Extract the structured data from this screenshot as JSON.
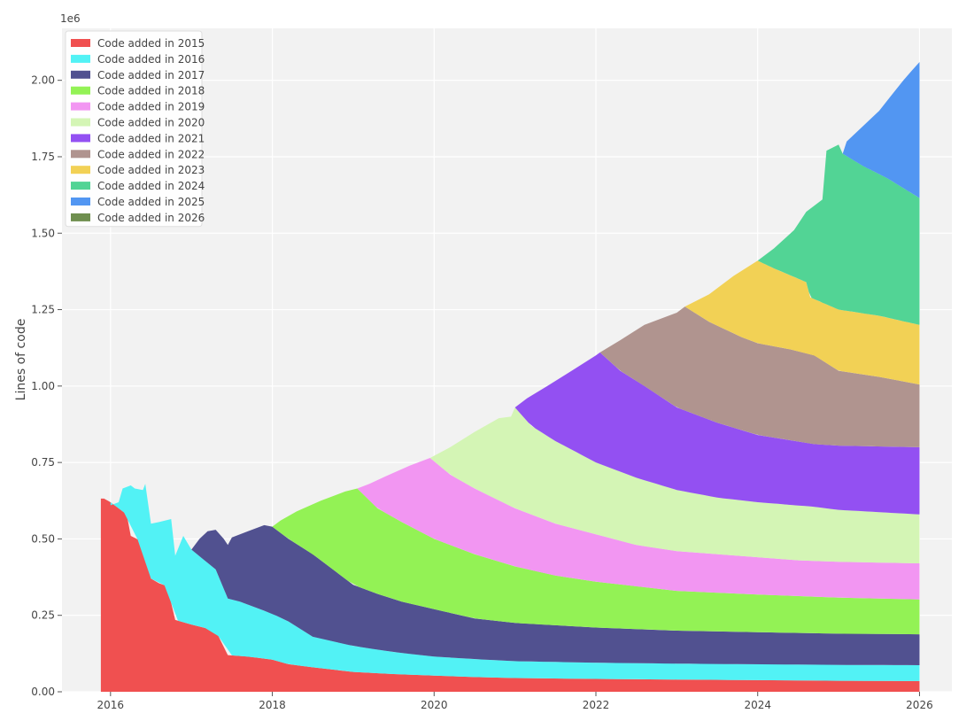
{
  "chart_data": {
    "type": "area",
    "stacked": true,
    "title": "",
    "xlabel": "",
    "ylabel": "Lines of code",
    "y_multiplier_label": "1e6",
    "xlim": [
      2015.4,
      2026.4
    ],
    "ylim": [
      0,
      2.17
    ],
    "x_ticks": [
      2016,
      2018,
      2020,
      2022,
      2024,
      2026
    ],
    "x_tick_labels": [
      "2016",
      "2018",
      "2020",
      "2022",
      "2024",
      "2026"
    ],
    "y_ticks": [
      0,
      0.25,
      0.5,
      0.75,
      1.0,
      1.25,
      1.5,
      1.75,
      2.0
    ],
    "y_tick_labels": [
      "0.00",
      "0.25",
      "0.50",
      "0.75",
      "1.00",
      "1.25",
      "1.50",
      "1.75",
      "2.00"
    ],
    "grid": true,
    "legend_position": "top-left",
    "series": [
      {
        "name": "Code added in 2015",
        "color": "#f05050",
        "points": [
          [
            2015.88,
            0
          ],
          [
            2015.88,
            0.632
          ],
          [
            2015.92,
            0.632
          ],
          [
            2016.0,
            0.62
          ],
          [
            2016.1,
            0.6
          ],
          [
            2016.2,
            0.58
          ],
          [
            2016.25,
            0.51
          ],
          [
            2016.4,
            0.49
          ],
          [
            2016.5,
            0.37
          ],
          [
            2016.6,
            0.355
          ],
          [
            2016.7,
            0.345
          ],
          [
            2016.8,
            0.235
          ],
          [
            2017.0,
            0.22
          ],
          [
            2017.3,
            0.2
          ],
          [
            2017.45,
            0.12
          ],
          [
            2017.7,
            0.115
          ],
          [
            2018.0,
            0.105
          ],
          [
            2018.2,
            0.09
          ],
          [
            2018.5,
            0.08
          ],
          [
            2019.0,
            0.065
          ],
          [
            2019.5,
            0.058
          ],
          [
            2020.0,
            0.053
          ],
          [
            2020.5,
            0.048
          ],
          [
            2021.0,
            0.045
          ],
          [
            2022.0,
            0.042
          ],
          [
            2023.0,
            0.04
          ],
          [
            2024.0,
            0.038
          ],
          [
            2025.0,
            0.036
          ],
          [
            2026.0,
            0.035
          ]
        ]
      },
      {
        "name": "Code added in 2016",
        "color": "#52f2f5",
        "points": [
          [
            2016.0,
            0.61
          ],
          [
            2016.1,
            0.62
          ],
          [
            2016.15,
            0.665
          ],
          [
            2016.25,
            0.675
          ],
          [
            2016.3,
            0.665
          ],
          [
            2016.4,
            0.66
          ],
          [
            2016.43,
            0.68
          ],
          [
            2016.5,
            0.55
          ],
          [
            2016.6,
            0.555
          ],
          [
            2016.75,
            0.565
          ],
          [
            2016.8,
            0.445
          ],
          [
            2016.9,
            0.51
          ],
          [
            2017.0,
            0.465
          ],
          [
            2017.3,
            0.4
          ],
          [
            2017.45,
            0.305
          ],
          [
            2017.6,
            0.295
          ],
          [
            2018.0,
            0.255
          ],
          [
            2018.2,
            0.23
          ],
          [
            2018.5,
            0.18
          ],
          [
            2019.0,
            0.15
          ],
          [
            2019.5,
            0.13
          ],
          [
            2020.0,
            0.115
          ],
          [
            2020.5,
            0.107
          ],
          [
            2021.0,
            0.1
          ],
          [
            2022.0,
            0.095
          ],
          [
            2023.0,
            0.092
          ],
          [
            2024.0,
            0.09
          ],
          [
            2025.0,
            0.088
          ],
          [
            2026.0,
            0.087
          ]
        ]
      },
      {
        "name": "Code added in 2017",
        "color": "#515190",
        "points": [
          [
            2017.0,
            0.465
          ],
          [
            2017.1,
            0.5
          ],
          [
            2017.2,
            0.525
          ],
          [
            2017.3,
            0.53
          ],
          [
            2017.4,
            0.5
          ],
          [
            2017.45,
            0.48
          ],
          [
            2017.5,
            0.505
          ],
          [
            2017.7,
            0.525
          ],
          [
            2017.9,
            0.545
          ],
          [
            2018.0,
            0.54
          ],
          [
            2018.2,
            0.5
          ],
          [
            2018.5,
            0.45
          ],
          [
            2018.8,
            0.39
          ],
          [
            2019.0,
            0.35
          ],
          [
            2019.3,
            0.32
          ],
          [
            2019.6,
            0.295
          ],
          [
            2020.0,
            0.27
          ],
          [
            2020.5,
            0.24
          ],
          [
            2021.0,
            0.225
          ],
          [
            2022.0,
            0.21
          ],
          [
            2023.0,
            0.2
          ],
          [
            2024.0,
            0.195
          ],
          [
            2025.0,
            0.19
          ],
          [
            2026.0,
            0.188
          ]
        ]
      },
      {
        "name": "Code added in 2018",
        "color": "#93f255",
        "points": [
          [
            2018.0,
            0.54
          ],
          [
            2018.1,
            0.56
          ],
          [
            2018.3,
            0.59
          ],
          [
            2018.6,
            0.625
          ],
          [
            2018.9,
            0.655
          ],
          [
            2019.05,
            0.665
          ],
          [
            2019.3,
            0.6
          ],
          [
            2019.6,
            0.555
          ],
          [
            2020.0,
            0.5
          ],
          [
            2020.5,
            0.45
          ],
          [
            2021.0,
            0.41
          ],
          [
            2021.5,
            0.38
          ],
          [
            2022.0,
            0.36
          ],
          [
            2022.5,
            0.345
          ],
          [
            2023.0,
            0.33
          ],
          [
            2024.0,
            0.318
          ],
          [
            2025.0,
            0.308
          ],
          [
            2026.0,
            0.302
          ]
        ]
      },
      {
        "name": "Code added in 2019",
        "color": "#f296f2",
        "points": [
          [
            2019.05,
            0.665
          ],
          [
            2019.2,
            0.68
          ],
          [
            2019.4,
            0.705
          ],
          [
            2019.7,
            0.74
          ],
          [
            2019.95,
            0.765
          ],
          [
            2020.2,
            0.71
          ],
          [
            2020.5,
            0.665
          ],
          [
            2021.0,
            0.6
          ],
          [
            2021.5,
            0.55
          ],
          [
            2022.0,
            0.515
          ],
          [
            2022.5,
            0.48
          ],
          [
            2023.0,
            0.46
          ],
          [
            2024.0,
            0.44
          ],
          [
            2024.5,
            0.43
          ],
          [
            2025.0,
            0.425
          ],
          [
            2026.0,
            0.42
          ]
        ]
      },
      {
        "name": "Code added in 2020",
        "color": "#d4f5b5",
        "points": [
          [
            2019.95,
            0.765
          ],
          [
            2020.2,
            0.8
          ],
          [
            2020.5,
            0.85
          ],
          [
            2020.8,
            0.895
          ],
          [
            2020.95,
            0.9
          ],
          [
            2021.0,
            0.93
          ],
          [
            2021.2,
            0.87
          ],
          [
            2021.5,
            0.82
          ],
          [
            2022.0,
            0.75
          ],
          [
            2022.5,
            0.7
          ],
          [
            2023.0,
            0.66
          ],
          [
            2023.5,
            0.635
          ],
          [
            2024.0,
            0.62
          ],
          [
            2024.7,
            0.605
          ],
          [
            2025.0,
            0.595
          ],
          [
            2026.0,
            0.58
          ]
        ]
      },
      {
        "name": "Code added in 2021",
        "color": "#9350f2",
        "points": [
          [
            2021.0,
            0.93
          ],
          [
            2021.15,
            0.96
          ],
          [
            2021.4,
            1.0
          ],
          [
            2021.7,
            1.05
          ],
          [
            2022.0,
            1.1
          ],
          [
            2022.05,
            1.11
          ],
          [
            2022.3,
            1.05
          ],
          [
            2022.6,
            1.0
          ],
          [
            2023.0,
            0.93
          ],
          [
            2023.5,
            0.88
          ],
          [
            2024.0,
            0.84
          ],
          [
            2024.7,
            0.81
          ],
          [
            2025.0,
            0.805
          ],
          [
            2026.0,
            0.8
          ]
        ]
      },
      {
        "name": "Code added in 2022",
        "color": "#b0948f",
        "points": [
          [
            2022.05,
            1.11
          ],
          [
            2022.3,
            1.15
          ],
          [
            2022.6,
            1.2
          ],
          [
            2023.0,
            1.24
          ],
          [
            2023.1,
            1.26
          ],
          [
            2023.4,
            1.21
          ],
          [
            2023.8,
            1.16
          ],
          [
            2024.0,
            1.14
          ],
          [
            2024.4,
            1.12
          ],
          [
            2024.7,
            1.1
          ],
          [
            2025.0,
            1.05
          ],
          [
            2025.5,
            1.03
          ],
          [
            2026.0,
            1.005
          ]
        ]
      },
      {
        "name": "Code added in 2023",
        "color": "#f2d155",
        "points": [
          [
            2023.1,
            1.26
          ],
          [
            2023.4,
            1.3
          ],
          [
            2023.7,
            1.36
          ],
          [
            2024.0,
            1.41
          ],
          [
            2024.2,
            1.385
          ],
          [
            2024.6,
            1.34
          ],
          [
            2024.65,
            1.29
          ],
          [
            2025.0,
            1.25
          ],
          [
            2025.5,
            1.23
          ],
          [
            2026.0,
            1.2
          ]
        ]
      },
      {
        "name": "Code added in 2024",
        "color": "#52d495",
        "points": [
          [
            2024.0,
            1.41
          ],
          [
            2024.2,
            1.45
          ],
          [
            2024.45,
            1.51
          ],
          [
            2024.6,
            1.57
          ],
          [
            2024.8,
            1.61
          ],
          [
            2024.85,
            1.77
          ],
          [
            2025.0,
            1.79
          ],
          [
            2025.05,
            1.76
          ],
          [
            2025.3,
            1.72
          ],
          [
            2025.6,
            1.68
          ],
          [
            2026.0,
            1.615
          ]
        ]
      },
      {
        "name": "Code added in 2025",
        "color": "#5296f2",
        "points": [
          [
            2025.05,
            1.76
          ],
          [
            2025.1,
            1.8
          ],
          [
            2025.3,
            1.85
          ],
          [
            2025.5,
            1.9
          ],
          [
            2025.65,
            1.95
          ],
          [
            2025.8,
            2.0
          ],
          [
            2025.9,
            2.03
          ],
          [
            2026.0,
            2.06
          ]
        ]
      },
      {
        "name": "Code added in 2026",
        "color": "#6f8f4f",
        "points": []
      }
    ]
  }
}
